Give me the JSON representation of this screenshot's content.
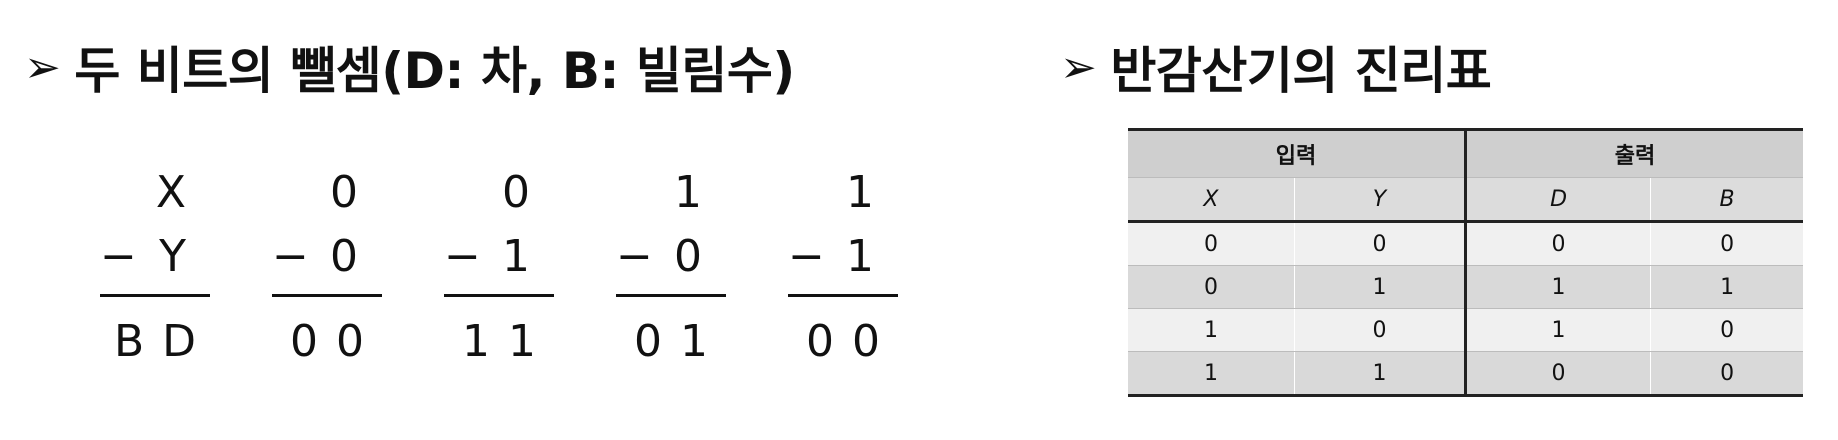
{
  "left": {
    "heading": "두 비트의 뺄셈(D: 차, B: 빌림수)",
    "columns": [
      {
        "top": "X",
        "minus": "−",
        "bottom": "Y",
        "result": [
          "B",
          "D"
        ]
      },
      {
        "top": "0",
        "minus": "−",
        "bottom": "0",
        "result": [
          "0",
          "0"
        ]
      },
      {
        "top": "0",
        "minus": "−",
        "bottom": "1",
        "result": [
          "1",
          "1"
        ]
      },
      {
        "top": "1",
        "minus": "−",
        "bottom": "0",
        "result": [
          "0",
          "1"
        ]
      },
      {
        "top": "1",
        "minus": "−",
        "bottom": "1",
        "result": [
          "0",
          "0"
        ]
      }
    ]
  },
  "right": {
    "heading": "반감산기의 진리표",
    "table": {
      "groups": [
        "입력",
        "출력"
      ],
      "vars": [
        "X",
        "Y",
        "D",
        "B"
      ],
      "rows": [
        [
          "0",
          "0",
          "0",
          "0"
        ],
        [
          "0",
          "1",
          "1",
          "1"
        ],
        [
          "1",
          "0",
          "1",
          "0"
        ],
        [
          "1",
          "1",
          "0",
          "0"
        ]
      ]
    }
  },
  "bullet_icon": "arrowhead-bullet-icon"
}
